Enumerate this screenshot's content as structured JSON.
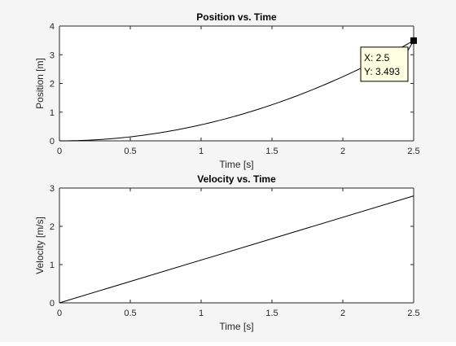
{
  "chart_data": [
    {
      "type": "line",
      "title": "Position vs. Time",
      "xlabel": "Time [s]",
      "ylabel": "Position [m]",
      "xlim": [
        0,
        2.5
      ],
      "ylim": [
        0,
        4
      ],
      "xticks": [
        0,
        0.5,
        1,
        1.5,
        2,
        2.5
      ],
      "xtick_labels": [
        "0",
        "0.5",
        "1",
        "1.5",
        "2",
        "2.5"
      ],
      "yticks": [
        0,
        1,
        2,
        3,
        4
      ],
      "ytick_labels": [
        "0",
        "1",
        "2",
        "3",
        "4"
      ],
      "grid": false,
      "box": true,
      "series": [
        {
          "color": "#000000",
          "x": [
            0,
            0.25,
            0.5,
            0.75,
            1,
            1.25,
            1.5,
            1.75,
            2,
            2.25,
            2.5
          ],
          "y": [
            0,
            0.035,
            0.14,
            0.314,
            0.559,
            0.873,
            1.257,
            1.712,
            2.236,
            2.829,
            3.493
          ]
        }
      ],
      "datatip": {
        "x": 2.5,
        "y": 3.493,
        "x_label": "X: 2.5",
        "y_label": "Y: 3.493"
      }
    },
    {
      "type": "line",
      "title": "Velocity vs. Time",
      "xlabel": "Time [s]",
      "ylabel": "Velocity [m/s]",
      "xlim": [
        0,
        2.5
      ],
      "ylim": [
        0,
        3
      ],
      "xticks": [
        0,
        0.5,
        1,
        1.5,
        2,
        2.5
      ],
      "xtick_labels": [
        "0",
        "0.5",
        "1",
        "1.5",
        "2",
        "2.5"
      ],
      "yticks": [
        0,
        1,
        2,
        3
      ],
      "ytick_labels": [
        "0",
        "1",
        "2",
        "3"
      ],
      "grid": false,
      "box": true,
      "series": [
        {
          "color": "#000000",
          "x": [
            0,
            2.5
          ],
          "y": [
            0,
            2.795
          ]
        }
      ]
    }
  ]
}
